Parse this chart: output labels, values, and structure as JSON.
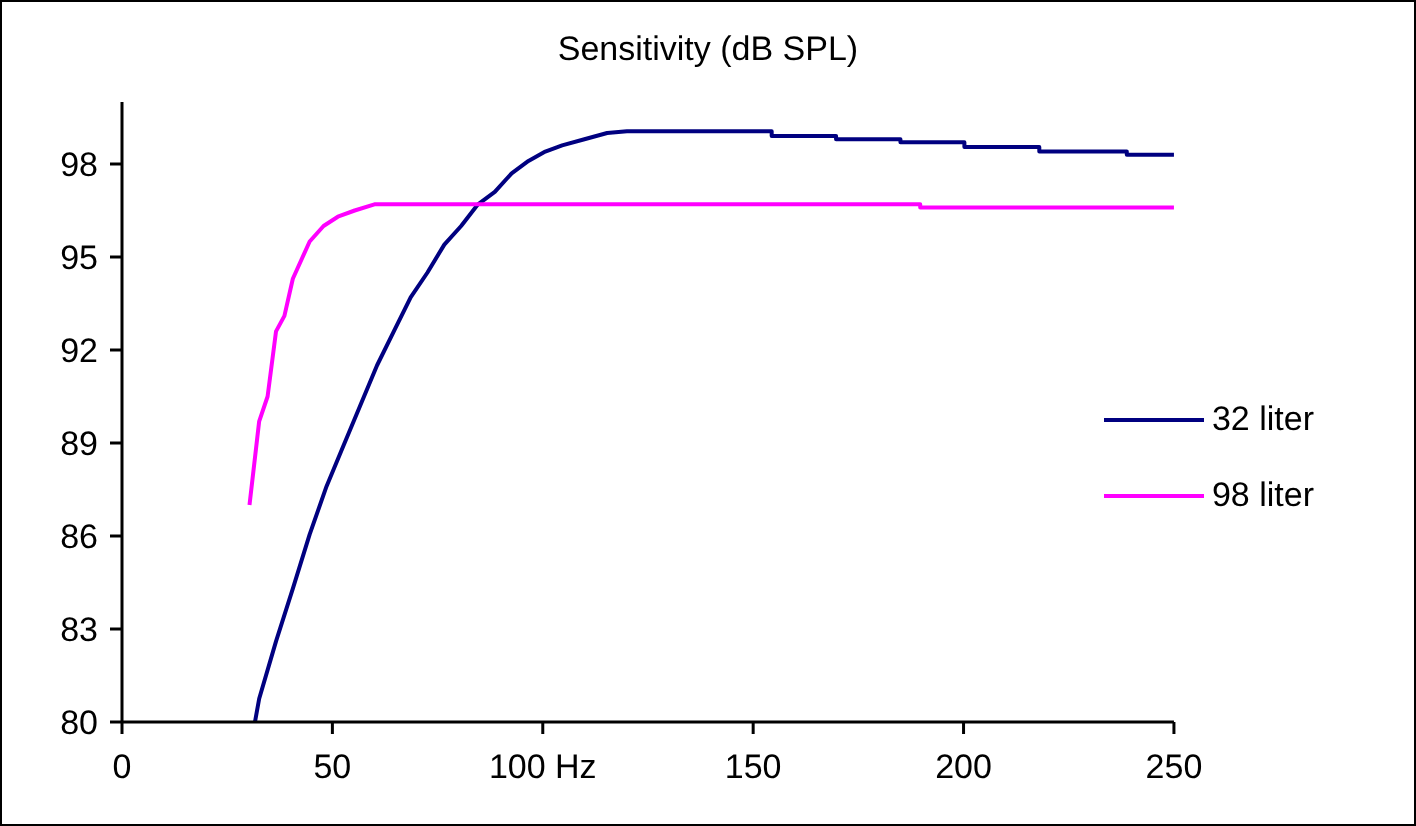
{
  "chart_data": {
    "type": "line",
    "title": "Sensitivity (dB SPL)",
    "xlim": [
      0,
      250
    ],
    "xticks": [
      0,
      50,
      {
        "value": 100,
        "label": "100  Hz"
      },
      150,
      200,
      250
    ],
    "ylim": [
      80,
      100
    ],
    "yticks": [
      80,
      83,
      86,
      89,
      92,
      95,
      98
    ],
    "grid": false,
    "legend": "right",
    "marker": "none",
    "line_style": "solid",
    "series": [
      {
        "name": "32 liter",
        "color": "#000080",
        "x": [
          31.6,
          32.6,
          36.6,
          40.6,
          44.6,
          48.6,
          52.6,
          56.6,
          60.6,
          64.6,
          68.6,
          72.6,
          76.6,
          80.6,
          84.6,
          88.6,
          92.6,
          96.6,
          100.6,
          104.6,
          109.9,
          115.3,
          120,
          154.4,
          154.4,
          169.7,
          169.7,
          185,
          185,
          200.2,
          200.2,
          218,
          218,
          238.8,
          238.8,
          250
        ],
        "values": [
          80,
          80.75,
          82.6,
          84.3,
          86.05,
          87.6,
          88.9,
          90.2,
          91.5,
          92.6,
          93.7,
          94.5,
          95.4,
          96.0,
          96.7,
          97.1,
          97.7,
          98.1,
          98.4,
          98.6,
          98.8,
          99.0,
          99.06,
          99.06,
          98.9,
          98.9,
          98.8,
          98.8,
          98.7,
          98.7,
          98.55,
          98.55,
          98.4,
          98.4,
          98.3,
          98.3
        ]
      },
      {
        "name": "98 liter",
        "color": "#ff00ff",
        "x": [
          30.3,
          32.6,
          34.6,
          36.6,
          38.6,
          40.6,
          44.6,
          47.9,
          51.3,
          55.3,
          60,
          189.7,
          189.7,
          250
        ],
        "values": [
          87.0,
          89.7,
          90.5,
          92.6,
          93.1,
          94.3,
          95.5,
          96.0,
          96.3,
          96.5,
          96.7,
          96.7,
          96.6,
          96.6
        ]
      }
    ]
  }
}
